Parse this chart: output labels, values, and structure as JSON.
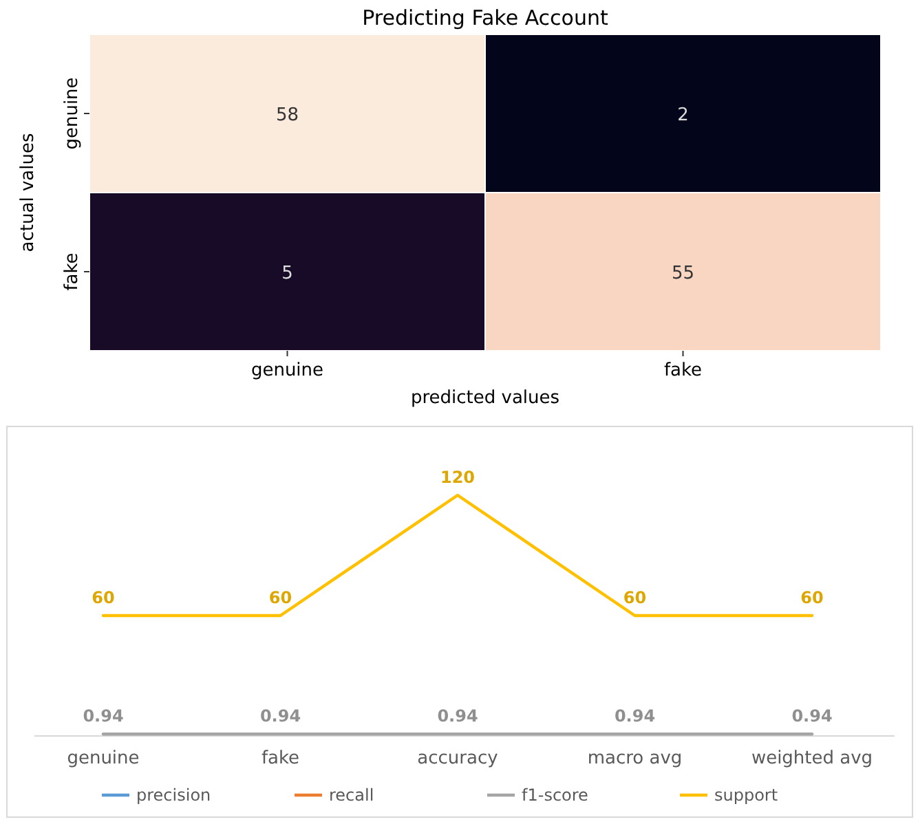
{
  "chart_data": [
    {
      "type": "heatmap",
      "title": "Predicting Fake Account",
      "xlabel": "predicted values",
      "ylabel": "actual values",
      "categories": [
        "genuine",
        "fake"
      ],
      "y_categories": [
        "genuine",
        "fake"
      ],
      "cells": [
        [
          58,
          2
        ],
        [
          5,
          55
        ]
      ],
      "data_labels": true
    },
    {
      "type": "line",
      "categories": [
        "genuine",
        "fake",
        "accuracy",
        "macro avg",
        "weighted avg"
      ],
      "data_labels": true,
      "legend": "bottom",
      "series": [
        {
          "name": "precision",
          "color": "#5b9bd5",
          "values": [
            null,
            null,
            null,
            null,
            null
          ]
        },
        {
          "name": "recall",
          "color": "#ed7d31",
          "values": [
            null,
            null,
            null,
            null,
            null
          ]
        },
        {
          "name": "f1-score",
          "color": "#a5a5a5",
          "values": [
            0.94,
            0.94,
            0.94,
            0.94,
            0.94
          ]
        },
        {
          "name": "support",
          "color": "#ffc000",
          "values": [
            60,
            60,
            120,
            60,
            60
          ]
        }
      ]
    }
  ]
}
